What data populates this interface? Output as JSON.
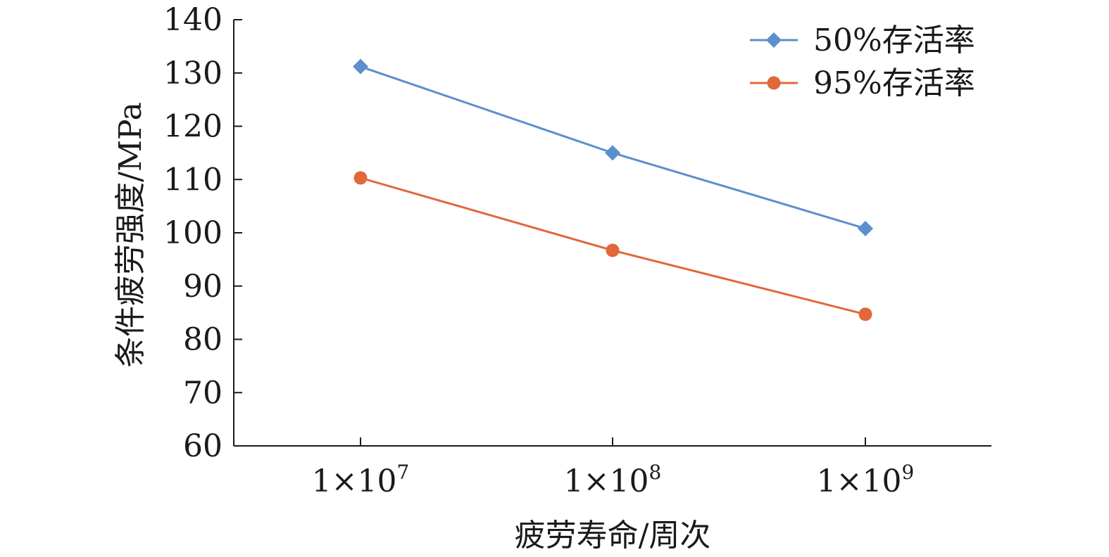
{
  "chart_data": {
    "type": "line",
    "x": [
      10000000,
      100000000,
      1000000000
    ],
    "x_tick_labels": [
      {
        "base": "1×10",
        "exp": "7"
      },
      {
        "base": "1×10",
        "exp": "8"
      },
      {
        "base": "1×10",
        "exp": "9"
      }
    ],
    "x_scale": "log",
    "xlabel": "疲劳寿命/周次",
    "ylabel": "条件疲劳强度/MPa",
    "ylim": [
      60,
      140
    ],
    "y_ticks": [
      60,
      70,
      80,
      90,
      100,
      110,
      120,
      130,
      140
    ],
    "grid": false,
    "legend_position": "top-right",
    "series": [
      {
        "name": "50%存活率",
        "values": [
          131.2,
          115.0,
          100.8
        ],
        "color": "#5b8fcd",
        "marker": "diamond"
      },
      {
        "name": "95%存活率",
        "values": [
          110.3,
          96.7,
          84.7
        ],
        "color": "#e0683a",
        "marker": "circle"
      }
    ]
  }
}
